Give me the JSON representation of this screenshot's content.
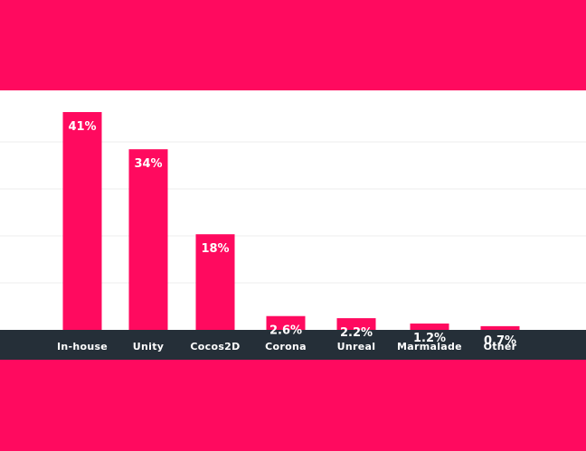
{
  "theme": {
    "accent": "#ff0a5f",
    "panel": "#ffffff",
    "axis_bar": "#252f38",
    "grid": "#ececec",
    "label": "#ffffff"
  },
  "chart_data": {
    "type": "bar",
    "categories": [
      "In-house",
      "Unity",
      "Cocos2D",
      "Corona",
      "Unreal",
      "Marmalade",
      "Other"
    ],
    "values": [
      41,
      34,
      18,
      2.6,
      2.2,
      1.2,
      0.7
    ],
    "value_labels": [
      "41%",
      "34%",
      "18%",
      "2.6%",
      "2.2%",
      "1.2%",
      "0.7%"
    ],
    "title": "",
    "xlabel": "",
    "ylabel": "",
    "grid": true,
    "legend": "none"
  }
}
